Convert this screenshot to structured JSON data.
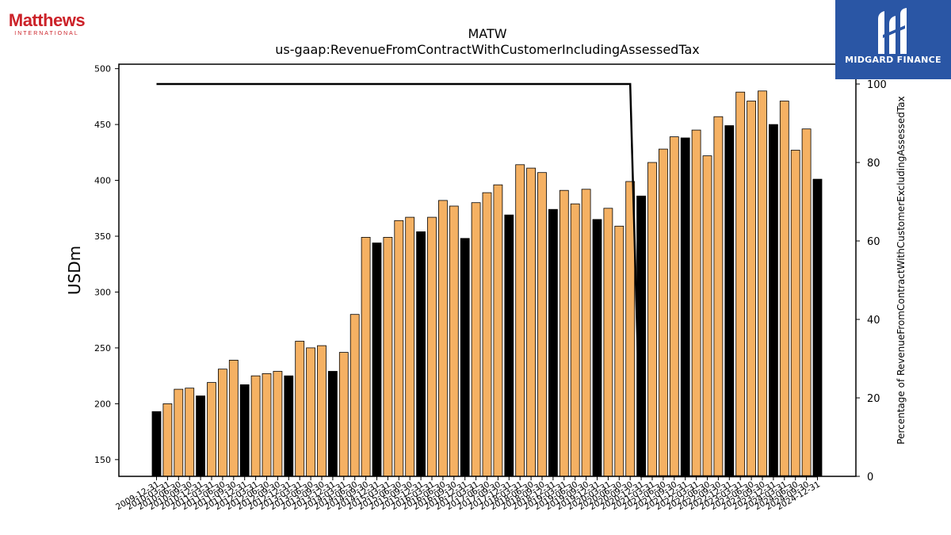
{
  "logos": {
    "left": {
      "brand": "Matthews",
      "sub": "INTERNATIONAL"
    },
    "right": {
      "name": "MIDGARD FINANCE"
    }
  },
  "colors": {
    "bar_quarter": "#f5b163",
    "bar_annual": "#000000",
    "line": "#000000"
  },
  "chart_data": {
    "type": "bar",
    "title": "MATW",
    "subtitle": "us-gaap:RevenueFromContractWithCustomerIncludingAssessedTax",
    "ylabel": "USDm",
    "ylabel_right": "Percentage of RevenueFromContractWithCustomerExcludingAssessedTax",
    "ylim": [
      135,
      504
    ],
    "ylim_right": [
      0,
      100
    ],
    "yticks": [
      150,
      200,
      250,
      300,
      350,
      400,
      450,
      500
    ],
    "yticks_right": [
      0,
      20,
      40,
      60,
      80,
      100
    ],
    "categories": [
      "2009-12-31",
      "2010-03-31",
      "2010-06-30",
      "2010-09-30",
      "2010-12-31",
      "2011-03-31",
      "2011-06-30",
      "2011-09-30",
      "2011-12-31",
      "2012-03-31",
      "2012-06-30",
      "2012-09-30",
      "2012-12-31",
      "2013-03-31",
      "2013-06-30",
      "2013-09-30",
      "2013-12-31",
      "2014-03-31",
      "2014-06-30",
      "2014-09-30",
      "2014-12-31",
      "2015-03-31",
      "2015-06-30",
      "2015-09-30",
      "2015-12-31",
      "2016-03-31",
      "2016-06-30",
      "2016-09-30",
      "2016-12-31",
      "2017-03-31",
      "2017-06-30",
      "2017-09-30",
      "2017-12-31",
      "2018-03-31",
      "2018-06-30",
      "2018-09-30",
      "2018-12-31",
      "2019-03-31",
      "2019-06-30",
      "2019-09-30",
      "2019-12-31",
      "2020-03-31",
      "2020-06-30",
      "2020-09-30",
      "2020-12-31",
      "2021-03-31",
      "2021-06-30",
      "2021-09-30",
      "2021-12-31",
      "2022-03-31",
      "2022-06-30",
      "2022-09-30",
      "2022-12-31",
      "2023-03-31",
      "2023-06-30",
      "2023-09-30",
      "2023-12-31",
      "2024-03-31",
      "2024-06-30",
      "2024-09-30",
      "2024-12-31"
    ],
    "series": [
      {
        "kind": "bar",
        "values": [
          193,
          200,
          213,
          214,
          207,
          219,
          231,
          239,
          217,
          225,
          227,
          229,
          225,
          256,
          250,
          252,
          229,
          246,
          280,
          349,
          344,
          349,
          364,
          367,
          354,
          367,
          382,
          377,
          348,
          380,
          389,
          396,
          369,
          414,
          411,
          407,
          374,
          391,
          379,
          392,
          365,
          375,
          359,
          399,
          386,
          416,
          428,
          439,
          438,
          445,
          422,
          457,
          449,
          479,
          471,
          480,
          450,
          471,
          427,
          446,
          401
        ],
        "annual": [
          true,
          false,
          false,
          false,
          true,
          false,
          false,
          false,
          true,
          false,
          false,
          false,
          true,
          false,
          false,
          false,
          true,
          false,
          false,
          false,
          true,
          false,
          false,
          false,
          true,
          false,
          false,
          false,
          true,
          false,
          false,
          false,
          true,
          false,
          false,
          false,
          true,
          false,
          false,
          false,
          true,
          false,
          false,
          false,
          true,
          false,
          false,
          false,
          true,
          false,
          false,
          false,
          true,
          false,
          false,
          false,
          true,
          false,
          false,
          false,
          true
        ]
      },
      {
        "kind": "line",
        "axis": "right",
        "values": [
          100,
          100,
          100,
          100,
          100,
          100,
          100,
          100,
          100,
          100,
          100,
          100,
          100,
          100,
          100,
          100,
          100,
          100,
          100,
          100,
          100,
          100,
          100,
          100,
          100,
          100,
          100,
          100,
          100,
          100,
          100,
          100,
          100,
          100,
          100,
          100,
          100,
          100,
          100,
          100,
          100,
          100,
          100,
          100,
          0,
          0,
          0,
          0,
          0,
          0,
          0,
          0,
          0,
          0,
          0,
          0,
          0,
          0,
          0,
          0,
          0
        ]
      }
    ]
  }
}
